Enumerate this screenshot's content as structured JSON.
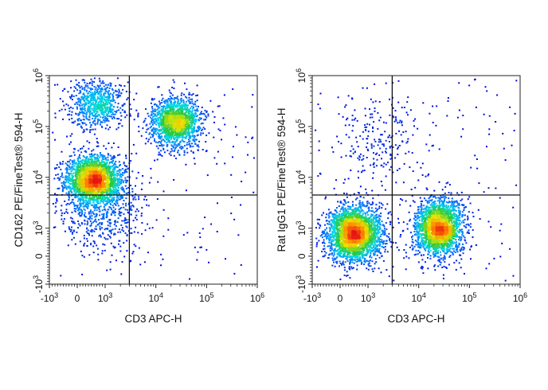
{
  "chart_data": [
    {
      "type": "scatter",
      "subtype": "flow-cytometry-density-dot-plot",
      "xlabel": "CD3 APC-H",
      "ylabel": "CD162 PE/FineTest® 594-H",
      "x_scale": "biexponential",
      "y_scale": "biexponential",
      "x_ticks": [
        "-10^3",
        "0",
        "10^3",
        "10^4",
        "10^5",
        "10^6"
      ],
      "y_ticks": [
        "-10^3",
        "0",
        "10^3",
        "10^4",
        "10^5",
        "10^6"
      ],
      "xlim": [
        -1000,
        1000000
      ],
      "ylim": [
        -1000,
        1000000
      ],
      "quadrant_gate": {
        "x": 3000,
        "y": 4500
      },
      "populations": [
        {
          "x": 600,
          "y": 9000,
          "weight": 0.46
        },
        {
          "x": 25000,
          "y": 120000,
          "weight": 0.3
        },
        {
          "x": 700,
          "y": 280000,
          "weight": 0.14
        },
        {
          "x": 800,
          "y": 2000,
          "weight": 0.1
        }
      ]
    },
    {
      "type": "scatter",
      "subtype": "flow-cytometry-density-dot-plot",
      "xlabel": "CD3 APC-H",
      "ylabel": "Rat IgG1 PE/FineTest® 594-H",
      "x_scale": "biexponential",
      "y_scale": "biexponential",
      "x_ticks": [
        "-10^3",
        "0",
        "10^3",
        "10^4",
        "10^5",
        "10^6"
      ],
      "y_ticks": [
        "-10^3",
        "0",
        "10^3",
        "10^4",
        "10^5",
        "10^6"
      ],
      "xlim": [
        -1000,
        1000000
      ],
      "ylim": [
        -1000,
        1000000
      ],
      "quadrant_gate": {
        "x": 3000,
        "y": 4500
      },
      "populations": [
        {
          "x": 500,
          "y": 800,
          "weight": 0.52
        },
        {
          "x": 25000,
          "y": 1000,
          "weight": 0.44
        },
        {
          "x": 1500,
          "y": 60000,
          "weight": 0.04
        }
      ]
    }
  ]
}
